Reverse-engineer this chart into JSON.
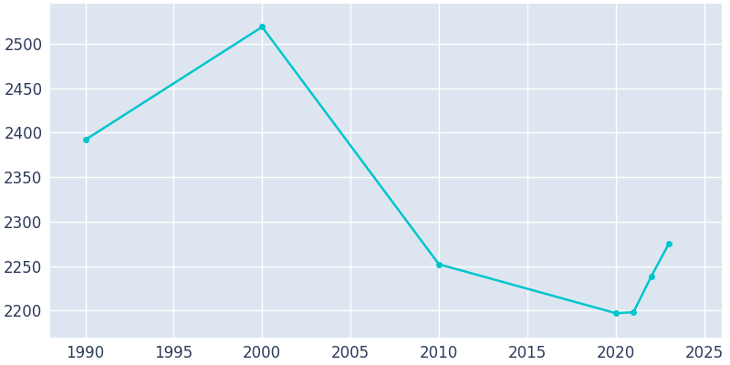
{
  "years": [
    1990,
    2000,
    2010,
    2020,
    2021,
    2022,
    2023
  ],
  "population": [
    2392,
    2519,
    2252,
    2197,
    2198,
    2238,
    2275
  ],
  "line_color": "#00c5cd",
  "marker_color": "#00c5cd",
  "plot_bg_color": "#dde6f0",
  "fig_bg_color": "#ffffff",
  "grid_color": "#ffffff",
  "tick_color": "#2d3a5a",
  "xlim": [
    1988,
    2026
  ],
  "ylim": [
    2170,
    2545
  ],
  "xticks": [
    1990,
    1995,
    2000,
    2005,
    2010,
    2015,
    2020,
    2025
  ],
  "yticks": [
    2200,
    2250,
    2300,
    2350,
    2400,
    2450,
    2500
  ],
  "marker_size": 4,
  "line_width": 1.8,
  "tick_labelsize": 12
}
